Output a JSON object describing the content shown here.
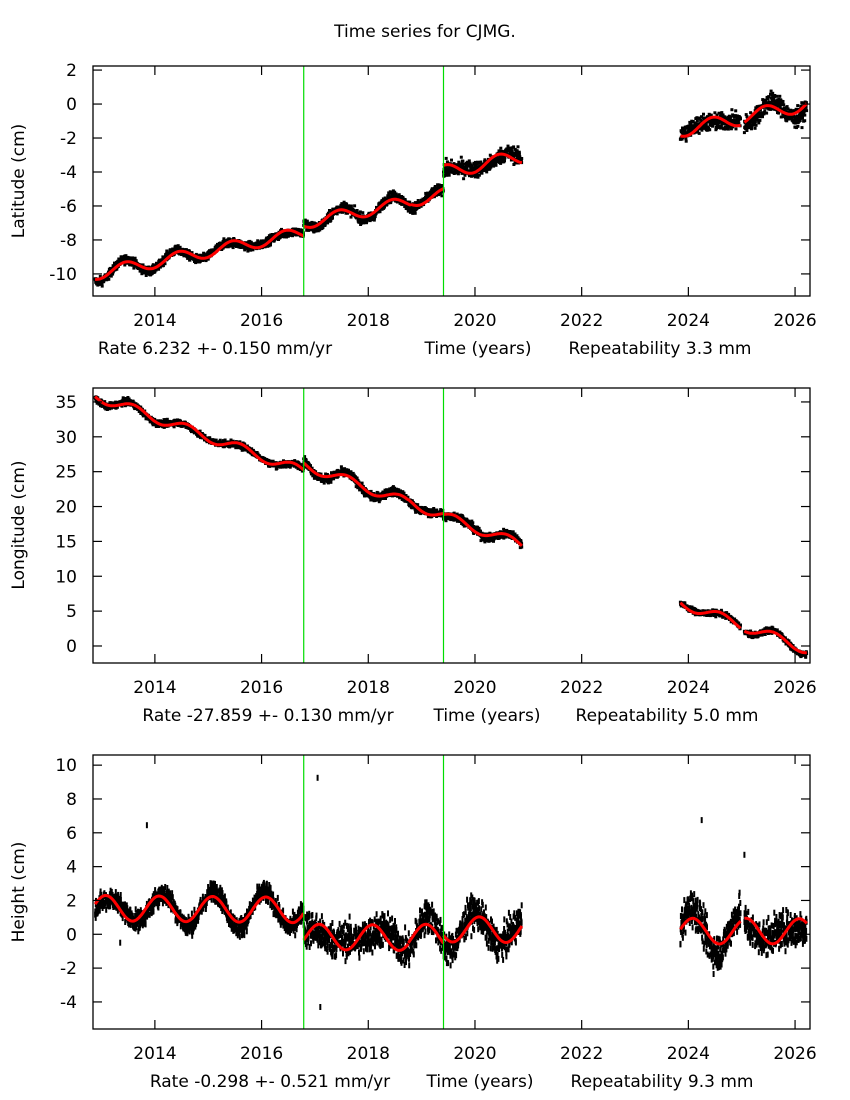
{
  "title": "Time series for CJMG.",
  "chart_data": [
    {
      "type": "scatter",
      "ylabel": "Latitude (cm)",
      "xlabel_parts": [
        "Rate 6.232 +- 0.150 mm/yr",
        "Time (years)",
        "Repeatability 3.3 mm"
      ],
      "xlim": [
        2012.84,
        2026.28
      ],
      "ylim": [
        -11.3,
        2.24
      ],
      "xticks": [
        2014,
        2016,
        2018,
        2020,
        2022,
        2024,
        2026
      ],
      "yticks": [
        2,
        0,
        -2,
        -4,
        -6,
        -8,
        -10
      ],
      "ytick_labels": [
        "2",
        "0",
        "-2",
        "-4",
        "-6",
        "-8",
        "-10"
      ],
      "breaks": [
        2016.79,
        2019.41
      ],
      "segments": [
        {
          "start": 2012.88,
          "end": 2016.79,
          "offset": -10.0,
          "rate": 0.62,
          "amp": 0.35,
          "phase": 0.2,
          "noise": 0.25
        },
        {
          "start": 2016.79,
          "end": 2018.8,
          "offset": -7.0,
          "rate": 0.62,
          "amp": 0.35,
          "phase": 0.2,
          "noise": 0.3
        },
        {
          "start": 2018.8,
          "end": 2019.41,
          "offset": -5.7,
          "rate": 0.62,
          "amp": 0.35,
          "phase": 0.2,
          "noise": 0.3
        },
        {
          "start": 2019.41,
          "end": 2020.88,
          "offset": -4.0,
          "rate": 0.62,
          "amp": 0.4,
          "phase": 0.2,
          "noise": 0.45
        },
        {
          "start": 2023.85,
          "end": 2024.98,
          "offset": -1.55,
          "rate": 0.62,
          "amp": 0.4,
          "phase": 0.2,
          "noise": 0.5
        },
        {
          "start": 2025.05,
          "end": 2026.22,
          "offset": -0.75,
          "rate": 0.62,
          "amp": 0.4,
          "phase": 0.2,
          "noise": 0.55
        }
      ]
    },
    {
      "type": "scatter",
      "ylabel": "Longitude (cm)",
      "xlabel_parts": [
        "Rate -27.859 +- 0.130 mm/yr",
        "Time (years)",
        "Repeatability 5.0 mm"
      ],
      "xlim": [
        2012.84,
        2026.28
      ],
      "ylim": [
        -2.44,
        37.0
      ],
      "xticks": [
        2014,
        2016,
        2018,
        2020,
        2022,
        2024,
        2026
      ],
      "yticks": [
        35,
        30,
        25,
        20,
        15,
        10,
        5,
        0
      ],
      "ytick_labels": [
        "35",
        "30",
        "25",
        "20",
        "15",
        "10",
        "5",
        "0"
      ],
      "breaks": [
        2016.79,
        2019.41
      ],
      "segments": [
        {
          "start": 2012.88,
          "end": 2016.79,
          "offset": 35.9,
          "rate": -2.79,
          "amp": 0.7,
          "phase": 0.35,
          "noise": 0.45
        },
        {
          "start": 2016.79,
          "end": 2018.75,
          "offset": 26.0,
          "rate": -2.79,
          "amp": 0.7,
          "phase": 0.35,
          "noise": 0.6
        },
        {
          "start": 2018.75,
          "end": 2019.41,
          "offset": 20.6,
          "rate": -2.79,
          "amp": 0.7,
          "phase": 0.35,
          "noise": 0.55
        },
        {
          "start": 2019.41,
          "end": 2020.88,
          "offset": 18.6,
          "rate": -2.79,
          "amp": 0.7,
          "phase": 0.35,
          "noise": 0.6
        },
        {
          "start": 2023.85,
          "end": 2024.98,
          "offset": 6.2,
          "rate": -2.79,
          "amp": 0.7,
          "phase": 0.35,
          "noise": 0.4
        },
        {
          "start": 2025.05,
          "end": 2026.22,
          "offset": 2.8,
          "rate": -2.79,
          "amp": 0.7,
          "phase": 0.35,
          "noise": 0.4
        }
      ]
    },
    {
      "type": "scatter",
      "ylabel": "Height (cm)",
      "xlabel_parts": [
        "Rate -0.298 +- 0.521 mm/yr",
        "Time (years)",
        "Repeatability 9.3 mm"
      ],
      "xlim": [
        2012.84,
        2026.28
      ],
      "ylim": [
        -5.6,
        10.6
      ],
      "xticks": [
        2014,
        2016,
        2018,
        2020,
        2022,
        2024,
        2026
      ],
      "yticks": [
        10,
        8,
        6,
        4,
        2,
        0,
        -2,
        -4
      ],
      "ytick_labels": [
        "10",
        "8",
        "6",
        "4",
        "2",
        "0",
        "-2",
        "-4"
      ],
      "breaks": [
        2016.79,
        2019.41
      ],
      "segments": [
        {
          "start": 2012.88,
          "end": 2016.79,
          "offset": 1.55,
          "rate": -0.03,
          "amp": 0.75,
          "phase": 0.83,
          "noise": 0.55
        },
        {
          "start": 2016.79,
          "end": 2018.75,
          "offset": -0.15,
          "rate": -0.03,
          "amp": 0.75,
          "phase": 0.83,
          "noise": 1.0
        },
        {
          "start": 2018.75,
          "end": 2019.41,
          "offset": -0.15,
          "rate": -0.03,
          "amp": 0.75,
          "phase": 0.83,
          "noise": 0.9
        },
        {
          "start": 2019.41,
          "end": 2020.88,
          "offset": 0.3,
          "rate": -0.03,
          "amp": 0.75,
          "phase": 0.83,
          "noise": 0.9
        },
        {
          "start": 2023.85,
          "end": 2024.98,
          "offset": 0.2,
          "rate": -0.03,
          "amp": 0.75,
          "phase": 0.83,
          "noise": 1.0
        },
        {
          "start": 2025.05,
          "end": 2026.22,
          "offset": 0.2,
          "rate": -0.03,
          "amp": 0.75,
          "phase": 0.83,
          "noise": 1.0
        }
      ],
      "outliers": [
        {
          "x": 2013.85,
          "y": 6.45
        },
        {
          "x": 2017.05,
          "y": 9.25
        },
        {
          "x": 2024.25,
          "y": 6.75
        },
        {
          "x": 2025.05,
          "y": 4.7
        },
        {
          "x": 2013.35,
          "y": -0.5
        },
        {
          "x": 2017.1,
          "y": -4.3
        }
      ]
    }
  ],
  "colors": {
    "data": "#000000",
    "model": "#ff0000",
    "breaks": "#00dd00",
    "frame": "#000000"
  }
}
